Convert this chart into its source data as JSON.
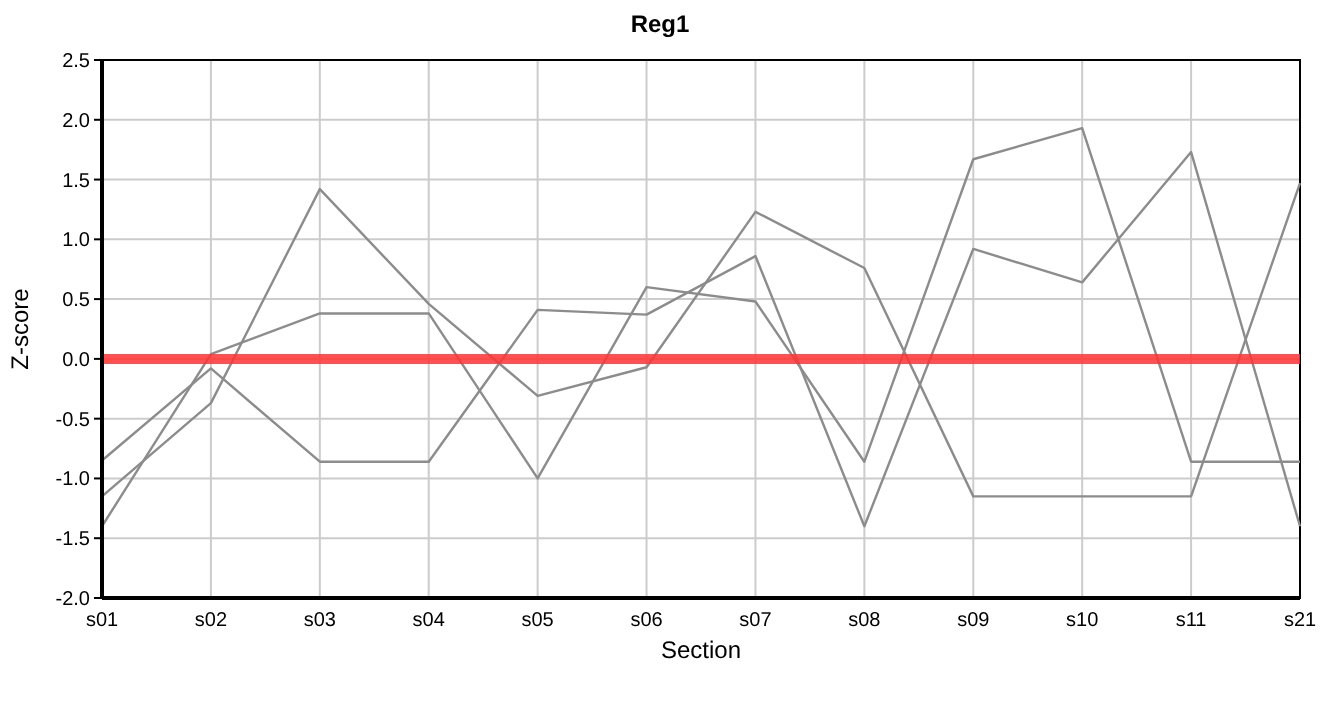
{
  "chart_data": {
    "type": "line",
    "title": "Reg1",
    "xlabel": "Section",
    "ylabel": "Z-score",
    "categories": [
      "s01",
      "s02",
      "s03",
      "s04",
      "s05",
      "s06",
      "s07",
      "s08",
      "s09",
      "s10",
      "s11",
      "s21"
    ],
    "series": [
      {
        "color": "#8c8c8c",
        "values": [
          -1.4,
          0.04,
          0.38,
          0.38,
          -1.0,
          0.6,
          0.48,
          -0.86,
          1.67,
          1.93,
          -0.86,
          -0.86
        ]
      },
      {
        "color": "#8c8c8c",
        "values": [
          -1.15,
          -0.37,
          1.42,
          0.46,
          -0.31,
          -0.07,
          1.23,
          0.76,
          -1.15,
          -1.15,
          -1.15,
          1.47
        ]
      },
      {
        "color": "#8c8c8c",
        "values": [
          -0.85,
          -0.08,
          -0.86,
          -0.86,
          0.41,
          0.37,
          0.86,
          -1.4,
          0.92,
          0.64,
          1.73,
          -1.4
        ]
      }
    ],
    "ylim": [
      -2.0,
      2.5
    ],
    "yticks": [
      {
        "value": -2,
        "label": "-2.0"
      },
      {
        "value": -1.5,
        "label": "-1.5"
      },
      {
        "value": -1,
        "label": "-1.0"
      },
      {
        "value": -0.5,
        "label": "-0.5"
      },
      {
        "value": 0,
        "label": "0.0"
      },
      {
        "value": 0.5,
        "label": "0.5"
      },
      {
        "value": 1,
        "label": "1.0"
      },
      {
        "value": 1.5,
        "label": "1.5"
      },
      {
        "value": 2,
        "label": "2.0"
      },
      {
        "value": 2.5,
        "label": "2.5"
      }
    ],
    "grid": true,
    "marker": "none",
    "line_style": "solid",
    "ref_lines": [
      {
        "axis": "y",
        "value": 0,
        "color": "#ff3333"
      }
    ]
  }
}
